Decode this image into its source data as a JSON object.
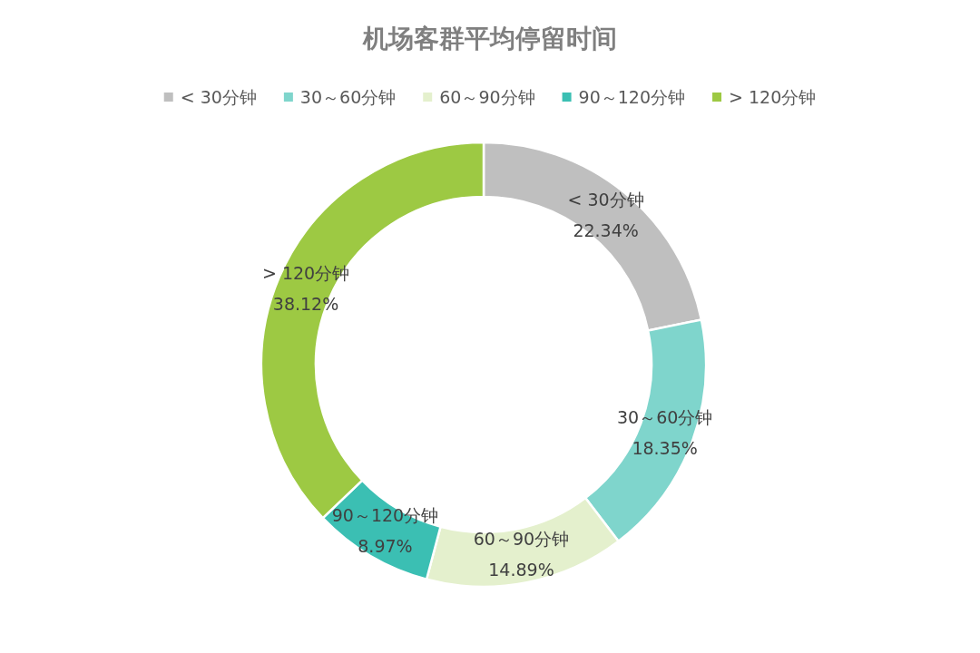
{
  "chart_data": {
    "type": "donut",
    "title": "机场客群平均停留时间",
    "categories": [
      "< 30分钟",
      "30～60分钟",
      "60～90分钟",
      "90～120分钟",
      "> 120分钟"
    ],
    "values": [
      22.34,
      18.35,
      14.89,
      8.97,
      38.12
    ],
    "colors": [
      "#bfbfbf",
      "#7fd5cc",
      "#e4f0cd",
      "#3bbfb3",
      "#9dc943"
    ],
    "value_labels": [
      "22.34%",
      "18.35%",
      "14.89%",
      "8.97%",
      "38.12%"
    ],
    "legend": "top"
  }
}
